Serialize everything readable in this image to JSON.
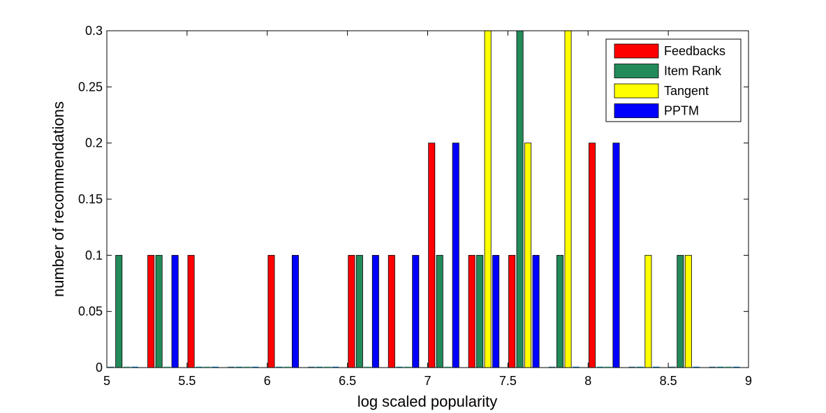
{
  "chart_data": {
    "type": "bar",
    "title": "",
    "xlabel": "log scaled popularity",
    "ylabel": "number of recommendations",
    "xlim": [
      5,
      9
    ],
    "ylim": [
      0,
      0.3
    ],
    "x_ticks": [
      "5",
      "5.5",
      "6",
      "6.5",
      "7",
      "7.5",
      "8",
      "8.5",
      "9"
    ],
    "y_ticks": [
      "0",
      "0.05",
      "0.1",
      "0.15",
      "0.2",
      "0.25",
      "0.3"
    ],
    "bin_centers": [
      5.1,
      5.35,
      5.6,
      5.85,
      6.1,
      6.35,
      6.6,
      6.85,
      7.1,
      7.35,
      7.6,
      7.85,
      8.1,
      8.35,
      8.6,
      8.85
    ],
    "legend_position": "top-right",
    "grid": false,
    "series": [
      {
        "name": "Feedbacks",
        "color": "#ff0000",
        "values": [
          0,
          0.1,
          0.1,
          0,
          0.1,
          0,
          0.1,
          0.1,
          0.2,
          0.1,
          0.1,
          0,
          0.2,
          0,
          0,
          0
        ]
      },
      {
        "name": "Item Rank",
        "color": "#238b5a",
        "values": [
          0.1,
          0.1,
          0,
          0,
          0,
          0,
          0.1,
          0,
          0.1,
          0.1,
          0.3,
          0.1,
          0,
          0,
          0.1,
          0
        ]
      },
      {
        "name": "Tangent",
        "color": "#ffff00",
        "values": [
          0,
          0,
          0,
          0,
          0,
          0,
          0,
          0,
          0,
          0.3,
          0.2,
          0.3,
          0,
          0.1,
          0.1,
          0
        ]
      },
      {
        "name": "PPTM",
        "color": "#0000ff",
        "values": [
          0,
          0.1,
          0,
          0,
          0.1,
          0,
          0.1,
          0.1,
          0.2,
          0.1,
          0.1,
          0,
          0.2,
          0,
          0,
          0
        ]
      }
    ]
  }
}
